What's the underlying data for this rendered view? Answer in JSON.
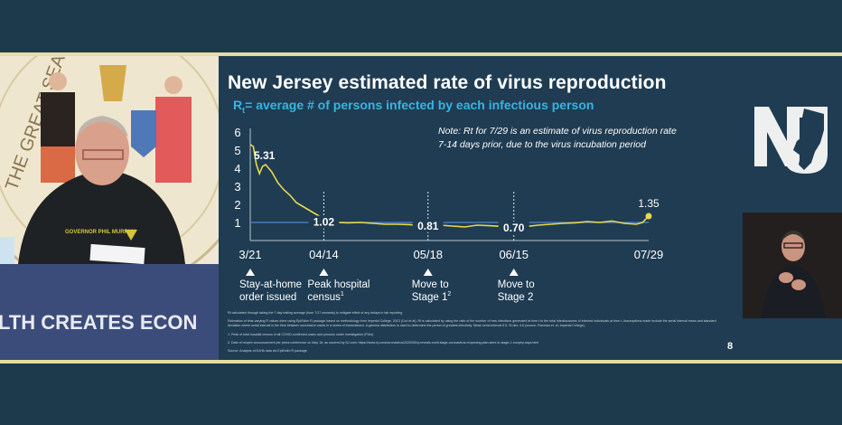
{
  "broadcast": {
    "banner_text": "LTH CREATES ECON",
    "jacket_text": "GOVERNOR PHIL MURPHY",
    "seal_text": "THE GREAT SEAL"
  },
  "slide": {
    "title": "New Jersey estimated rate of virus reproduction",
    "subtitle_r": "R",
    "subtitle_sub": "t",
    "subtitle_rest": "= average # of persons infected by each infectious person",
    "note_line1": "Note: Rt for 7/29 is an estimate of virus reproduction rate",
    "note_line2": "7-14 days prior, due to the virus incubation period",
    "footnotes": [
      "Rt calculated through taking the 7 day trailing average (from 7/17 onwards) to mitigate effect of any delays in lab reporting",
      "Estimation of time-varying R values done using EpiEstim R package based on methodology from Imperial College, 2013 (Cori et al). Rt is calculated by using the ratio of the number of new infections generated at time t to the total infectiousness of infected individuals at time t. Assumptions made include the serial interval mean and standard deviation where serial interval is the time between successive cases in a series of transmission. A gamma distribution is used to determine the period of greatest infectivity. Mean serial interval 6.5, St dev. 4.6 (source: Flaxman et. al, Imperial College).",
      "1. Peak of total hospital census of all COVID-confirmed cases and persons under investigation (PUIs).",
      "2. Date of reopen announcement per press conference on May 18, as covered by NJ.com: https://www.nj.com/coronavirus/2020/05/nj-reveals-multi-stage-coronavirus-reopening-plan-were-in-stage-1-murphy-says.html",
      "Source: Analysis of NJHA data via EpiEstim R package"
    ],
    "page_number": "8"
  },
  "logo": {
    "text": "NJ"
  },
  "chart_data": {
    "type": "line",
    "title": "New Jersey estimated rate of virus reproduction",
    "subtitle": "Rt= average # of persons infected by each infectious person",
    "y_ticks": [
      "1",
      "2",
      "3",
      "4",
      "5",
      "6"
    ],
    "ylim": [
      0,
      6
    ],
    "x_ticks": [
      "3/21",
      "04/14",
      "05/18",
      "06/15",
      "07/29"
    ],
    "reference_line": 1,
    "grid": false,
    "colors": {
      "series": "#e8d84a",
      "reference": "#4a78b8",
      "axis": "#b9c4cc"
    },
    "series": [
      {
        "x": [
          "03/21",
          "03/22",
          "03/23",
          "03/24",
          "03/25",
          "03/26",
          "03/27",
          "03/28",
          "03/30",
          "04/01",
          "04/03",
          "04/05",
          "04/07",
          "04/09",
          "04/11",
          "04/13",
          "04/14",
          "04/18",
          "04/22",
          "04/26",
          "04/30",
          "05/04",
          "05/08",
          "05/12",
          "05/16",
          "05/18",
          "05/22",
          "05/26",
          "05/30",
          "06/03",
          "06/07",
          "06/11",
          "06/15",
          "06/19",
          "06/23",
          "06/27",
          "07/01",
          "07/05",
          "07/09",
          "07/13",
          "07/17",
          "07/21",
          "07/25",
          "07/27",
          "07/29"
        ],
        "y": [
          5.31,
          5.2,
          4.2,
          3.7,
          4.1,
          4.2,
          4.0,
          3.8,
          3.2,
          2.8,
          2.5,
          2.1,
          1.9,
          1.7,
          1.5,
          1.3,
          1.02,
          1.0,
          0.98,
          1.0,
          0.95,
          0.9,
          0.9,
          0.88,
          0.82,
          0.81,
          0.85,
          0.8,
          0.75,
          0.85,
          0.82,
          0.78,
          0.7,
          0.78,
          0.85,
          0.9,
          0.95,
          0.98,
          1.05,
          1.0,
          1.08,
          0.95,
          0.9,
          1.0,
          1.35
        ]
      }
    ],
    "data_labels": [
      {
        "x": "03/21",
        "y": 5.31,
        "text": "5.31"
      },
      {
        "x": "04/14",
        "y": 1.02,
        "text": "1.02"
      },
      {
        "x": "05/18",
        "y": 0.81,
        "text": "0.81"
      },
      {
        "x": "06/15",
        "y": 0.7,
        "text": "0.70"
      },
      {
        "x": "07/29",
        "y": 1.35,
        "text": "1.35"
      }
    ],
    "events": [
      {
        "x": "03/21",
        "line1": "Stay-at-home",
        "line2": "order issued",
        "sup": ""
      },
      {
        "x": "04/14",
        "line1": "Peak hospital",
        "line2": "census",
        "sup": "1"
      },
      {
        "x": "05/18",
        "line1": "Move to",
        "line2": "Stage 1",
        "sup": "2"
      },
      {
        "x": "06/15",
        "line1": "Move to",
        "line2": "Stage 2",
        "sup": ""
      }
    ]
  }
}
